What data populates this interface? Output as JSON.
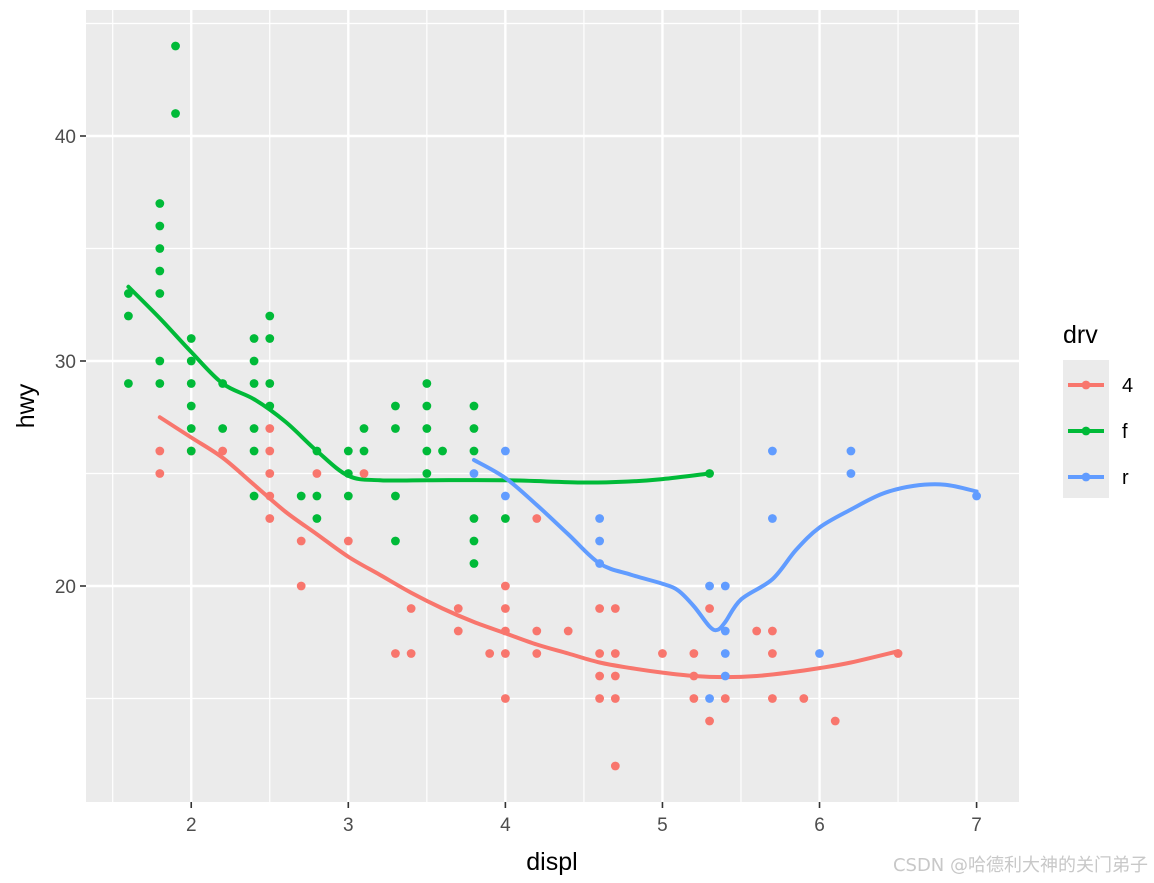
{
  "chart_data": {
    "type": "scatter",
    "title": "",
    "xlabel": "displ",
    "ylabel": "hwy",
    "xlim": [
      1.33,
      7.27
    ],
    "ylim": [
      10.4,
      45.6
    ],
    "x_ticks": [
      2,
      3,
      4,
      5,
      6,
      7
    ],
    "y_ticks": [
      20,
      30,
      40
    ],
    "grid": true,
    "legend": {
      "title": "drv",
      "position": "right",
      "entries": [
        {
          "label": "4",
          "color": "#F8766D"
        },
        {
          "label": "f",
          "color": "#00BA38"
        },
        {
          "label": "r",
          "color": "#619CFF"
        }
      ]
    },
    "series": [
      {
        "name": "4",
        "color": "#F8766D",
        "points": [
          [
            1.8,
            26
          ],
          [
            1.8,
            25
          ],
          [
            2.0,
            26
          ],
          [
            2.2,
            26
          ],
          [
            2.5,
            27
          ],
          [
            2.5,
            26
          ],
          [
            2.5,
            25
          ],
          [
            2.5,
            24
          ],
          [
            2.5,
            23
          ],
          [
            2.7,
            22
          ],
          [
            2.7,
            20
          ],
          [
            2.8,
            25
          ],
          [
            3.0,
            22
          ],
          [
            3.1,
            25
          ],
          [
            3.3,
            17
          ],
          [
            3.4,
            17
          ],
          [
            3.4,
            19
          ],
          [
            3.7,
            19
          ],
          [
            3.7,
            18
          ],
          [
            3.9,
            17
          ],
          [
            4.0,
            20
          ],
          [
            4.0,
            19
          ],
          [
            4.0,
            18
          ],
          [
            4.0,
            17
          ],
          [
            4.0,
            15
          ],
          [
            4.2,
            23
          ],
          [
            4.2,
            18
          ],
          [
            4.2,
            17
          ],
          [
            4.4,
            18
          ],
          [
            4.6,
            19
          ],
          [
            4.6,
            17
          ],
          [
            4.6,
            16
          ],
          [
            4.6,
            15
          ],
          [
            4.7,
            19
          ],
          [
            4.7,
            17
          ],
          [
            4.7,
            16
          ],
          [
            4.7,
            15
          ],
          [
            4.7,
            12
          ],
          [
            5.0,
            17
          ],
          [
            5.2,
            17
          ],
          [
            5.2,
            16
          ],
          [
            5.2,
            15
          ],
          [
            5.3,
            19
          ],
          [
            5.3,
            14
          ],
          [
            5.4,
            15
          ],
          [
            5.6,
            18
          ],
          [
            5.7,
            18
          ],
          [
            5.7,
            17
          ],
          [
            5.7,
            15
          ],
          [
            5.9,
            15
          ],
          [
            6.1,
            14
          ],
          [
            6.5,
            17
          ]
        ],
        "smooth": [
          [
            1.8,
            27.5
          ],
          [
            2.0,
            26.6
          ],
          [
            2.2,
            25.7
          ],
          [
            2.4,
            24.5
          ],
          [
            2.6,
            23.3
          ],
          [
            2.8,
            22.3
          ],
          [
            3.0,
            21.3
          ],
          [
            3.2,
            20.5
          ],
          [
            3.4,
            19.7
          ],
          [
            3.6,
            19.0
          ],
          [
            3.8,
            18.4
          ],
          [
            4.0,
            17.9
          ],
          [
            4.2,
            17.4
          ],
          [
            4.4,
            17.0
          ],
          [
            4.6,
            16.6
          ],
          [
            4.8,
            16.35
          ],
          [
            5.0,
            16.15
          ],
          [
            5.2,
            16.0
          ],
          [
            5.4,
            15.95
          ],
          [
            5.6,
            16.0
          ],
          [
            5.8,
            16.15
          ],
          [
            6.0,
            16.35
          ],
          [
            6.2,
            16.6
          ],
          [
            6.5,
            17.1
          ]
        ]
      },
      {
        "name": "f",
        "color": "#00BA38",
        "points": [
          [
            1.6,
            33
          ],
          [
            1.6,
            32
          ],
          [
            1.6,
            29
          ],
          [
            1.8,
            37
          ],
          [
            1.8,
            36
          ],
          [
            1.8,
            35
          ],
          [
            1.8,
            34
          ],
          [
            1.8,
            33
          ],
          [
            1.8,
            30
          ],
          [
            1.8,
            29
          ],
          [
            1.9,
            44
          ],
          [
            1.9,
            41
          ],
          [
            2.0,
            31
          ],
          [
            2.0,
            30
          ],
          [
            2.0,
            29
          ],
          [
            2.0,
            28
          ],
          [
            2.0,
            27
          ],
          [
            2.0,
            26
          ],
          [
            2.2,
            29
          ],
          [
            2.2,
            27
          ],
          [
            2.4,
            31
          ],
          [
            2.4,
            30
          ],
          [
            2.4,
            29
          ],
          [
            2.4,
            27
          ],
          [
            2.4,
            26
          ],
          [
            2.4,
            24
          ],
          [
            2.5,
            32
          ],
          [
            2.5,
            31
          ],
          [
            2.5,
            29
          ],
          [
            2.5,
            28
          ],
          [
            2.7,
            24
          ],
          [
            2.8,
            26
          ],
          [
            2.8,
            24
          ],
          [
            2.8,
            23
          ],
          [
            3.0,
            26
          ],
          [
            3.0,
            25
          ],
          [
            3.0,
            24
          ],
          [
            3.1,
            27
          ],
          [
            3.1,
            26
          ],
          [
            3.3,
            28
          ],
          [
            3.3,
            27
          ],
          [
            3.3,
            24
          ],
          [
            3.3,
            22
          ],
          [
            3.5,
            29
          ],
          [
            3.5,
            28
          ],
          [
            3.5,
            27
          ],
          [
            3.5,
            26
          ],
          [
            3.5,
            25
          ],
          [
            3.6,
            26
          ],
          [
            3.8,
            28
          ],
          [
            3.8,
            27
          ],
          [
            3.8,
            26
          ],
          [
            3.8,
            23
          ],
          [
            3.8,
            22
          ],
          [
            3.8,
            21
          ],
          [
            4.0,
            23
          ],
          [
            5.3,
            25
          ]
        ],
        "smooth": [
          [
            1.6,
            33.3
          ],
          [
            1.8,
            31.9
          ],
          [
            2.0,
            30.4
          ],
          [
            2.2,
            29.0
          ],
          [
            2.4,
            28.3
          ],
          [
            2.6,
            27.3
          ],
          [
            2.8,
            26.0
          ],
          [
            3.0,
            24.9
          ],
          [
            3.2,
            24.7
          ],
          [
            3.5,
            24.7
          ],
          [
            4.0,
            24.7
          ],
          [
            4.5,
            24.6
          ],
          [
            4.8,
            24.65
          ],
          [
            5.0,
            24.75
          ],
          [
            5.3,
            25.0
          ]
        ]
      },
      {
        "name": "r",
        "color": "#619CFF",
        "points": [
          [
            3.8,
            25
          ],
          [
            4.0,
            26
          ],
          [
            4.0,
            24
          ],
          [
            4.6,
            23
          ],
          [
            4.6,
            22
          ],
          [
            4.6,
            21
          ],
          [
            5.3,
            20
          ],
          [
            5.3,
            15
          ],
          [
            5.4,
            20
          ],
          [
            5.4,
            18
          ],
          [
            5.4,
            17
          ],
          [
            5.4,
            16
          ],
          [
            5.7,
            26
          ],
          [
            5.7,
            23
          ],
          [
            6.0,
            17
          ],
          [
            6.2,
            26
          ],
          [
            6.2,
            25
          ],
          [
            7.0,
            24
          ]
        ],
        "smooth": [
          [
            3.8,
            25.6
          ],
          [
            4.0,
            24.8
          ],
          [
            4.2,
            23.6
          ],
          [
            4.4,
            22.3
          ],
          [
            4.6,
            21.0
          ],
          [
            4.8,
            20.5
          ],
          [
            5.0,
            20.1
          ],
          [
            5.1,
            19.8
          ],
          [
            5.2,
            19.1
          ],
          [
            5.3,
            18.2
          ],
          [
            5.35,
            18.05
          ],
          [
            5.4,
            18.4
          ],
          [
            5.5,
            19.4
          ],
          [
            5.7,
            20.3
          ],
          [
            5.85,
            21.6
          ],
          [
            6.0,
            22.6
          ],
          [
            6.2,
            23.4
          ],
          [
            6.4,
            24.1
          ],
          [
            6.6,
            24.45
          ],
          [
            6.8,
            24.5
          ],
          [
            7.0,
            24.2
          ]
        ]
      }
    ]
  },
  "watermark": "CSDN @哈德利大神的关门弟子"
}
